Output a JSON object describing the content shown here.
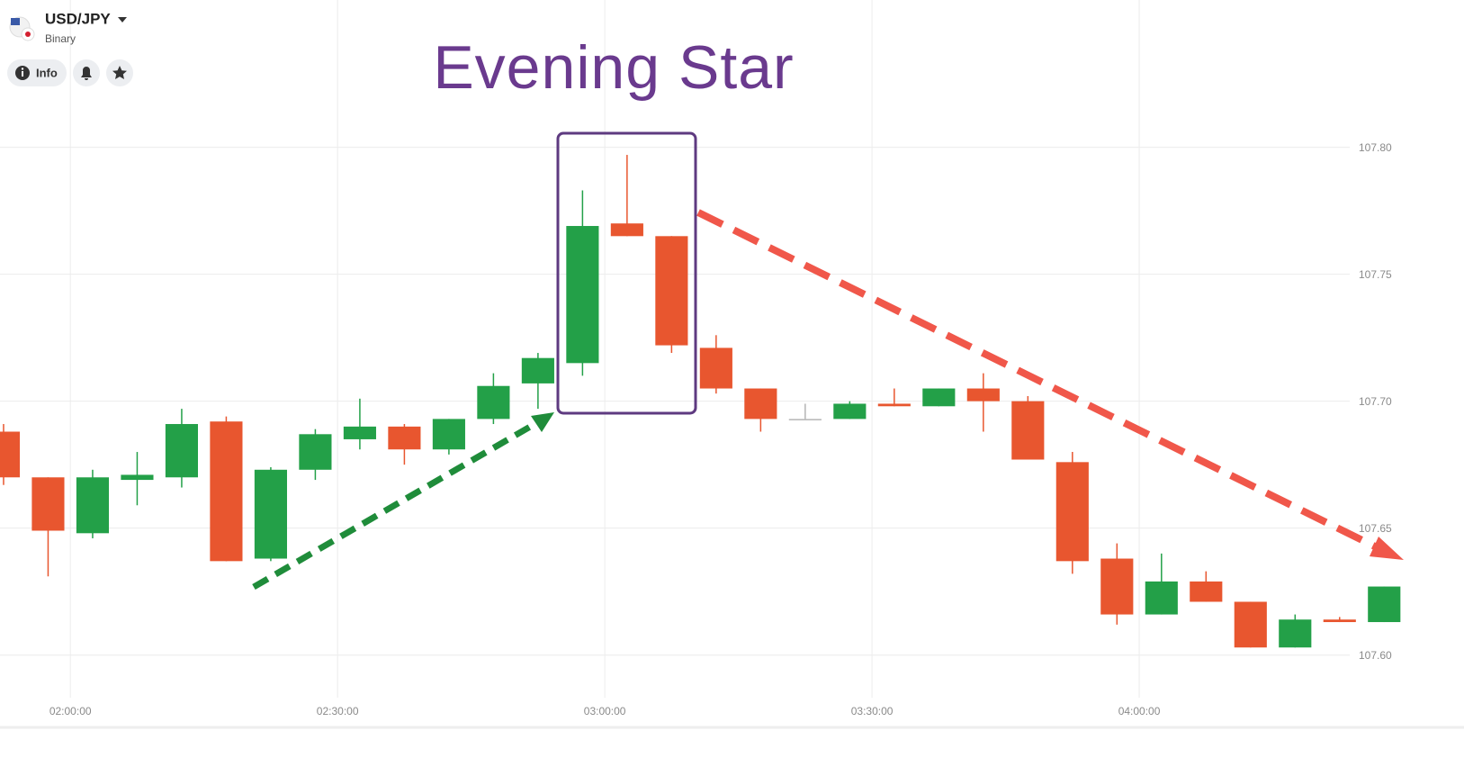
{
  "chart_data": {
    "type": "candlestick",
    "instrument": "USD/JPY",
    "instrument_type": "Binary",
    "button": "Info",
    "annotation": "Evening Star",
    "x": [
      112.5,
      117.5,
      122.5,
      127.5,
      132.5,
      137.5,
      142.5,
      147.5,
      152.5,
      157.5,
      162.5,
      167.5,
      172.5,
      177.5,
      182.5,
      187.5,
      192.5,
      197.5,
      202.5,
      207.5,
      212.5,
      217.5,
      222.5,
      227.5,
      232.5,
      237.5,
      242.5,
      247.5,
      252.5,
      257.5,
      262.5,
      267.5
    ],
    "open": [
      107.688,
      107.67,
      107.648,
      107.669,
      107.67,
      107.692,
      107.638,
      107.673,
      107.685,
      107.69,
      107.681,
      107.693,
      107.707,
      107.715,
      107.77,
      107.765,
      107.721,
      107.705,
      107.693,
      107.693,
      107.699,
      107.698,
      107.705,
      107.7,
      107.676,
      107.638,
      107.616,
      107.629,
      107.621,
      107.603,
      107.614,
      107.613
    ],
    "high": [
      107.691,
      107.67,
      107.673,
      107.68,
      107.697,
      107.694,
      107.674,
      107.689,
      107.701,
      107.691,
      107.693,
      107.711,
      107.719,
      107.783,
      107.797,
      107.765,
      107.726,
      107.705,
      107.699,
      107.7,
      107.705,
      107.705,
      107.711,
      107.702,
      107.68,
      107.644,
      107.64,
      107.633,
      107.621,
      107.616,
      107.615,
      107.627
    ],
    "low": [
      107.667,
      107.631,
      107.646,
      107.659,
      107.666,
      107.637,
      107.637,
      107.669,
      107.681,
      107.675,
      107.679,
      107.691,
      107.697,
      107.71,
      107.765,
      107.719,
      107.703,
      107.688,
      107.693,
      107.693,
      107.698,
      107.698,
      107.688,
      107.677,
      107.632,
      107.612,
      107.616,
      107.621,
      107.603,
      107.603,
      107.613,
      107.613
    ],
    "close": [
      107.67,
      107.649,
      107.67,
      107.671,
      107.691,
      107.637,
      107.673,
      107.687,
      107.69,
      107.681,
      107.693,
      107.706,
      107.717,
      107.769,
      107.765,
      107.722,
      107.705,
      107.693,
      107.693,
      107.699,
      107.698,
      107.705,
      107.7,
      107.677,
      107.637,
      107.616,
      107.629,
      107.621,
      107.603,
      107.614,
      107.613,
      107.627
    ],
    "up_color": "#23a048",
    "down_color": "#e8562f",
    "flat_color": "#b5b5b5",
    "xlim": [
      112.1,
      270.2
    ],
    "xticks": [
      {
        "value": 120,
        "label": "02:00:00"
      },
      {
        "value": 150,
        "label": "02:30:00"
      },
      {
        "value": 180,
        "label": "03:00:00"
      },
      {
        "value": 210,
        "label": "03:30:00"
      },
      {
        "value": 240,
        "label": "04:00:00"
      }
    ],
    "ylim": [
      107.585,
      107.858
    ],
    "yticks": [
      {
        "value": 107.6,
        "label": "107.60"
      },
      {
        "value": 107.65,
        "label": "107.65"
      },
      {
        "value": 107.7,
        "label": "107.70"
      },
      {
        "value": 107.75,
        "label": "107.75"
      },
      {
        "value": 107.8,
        "label": "107.80"
      }
    ],
    "grid": true
  }
}
